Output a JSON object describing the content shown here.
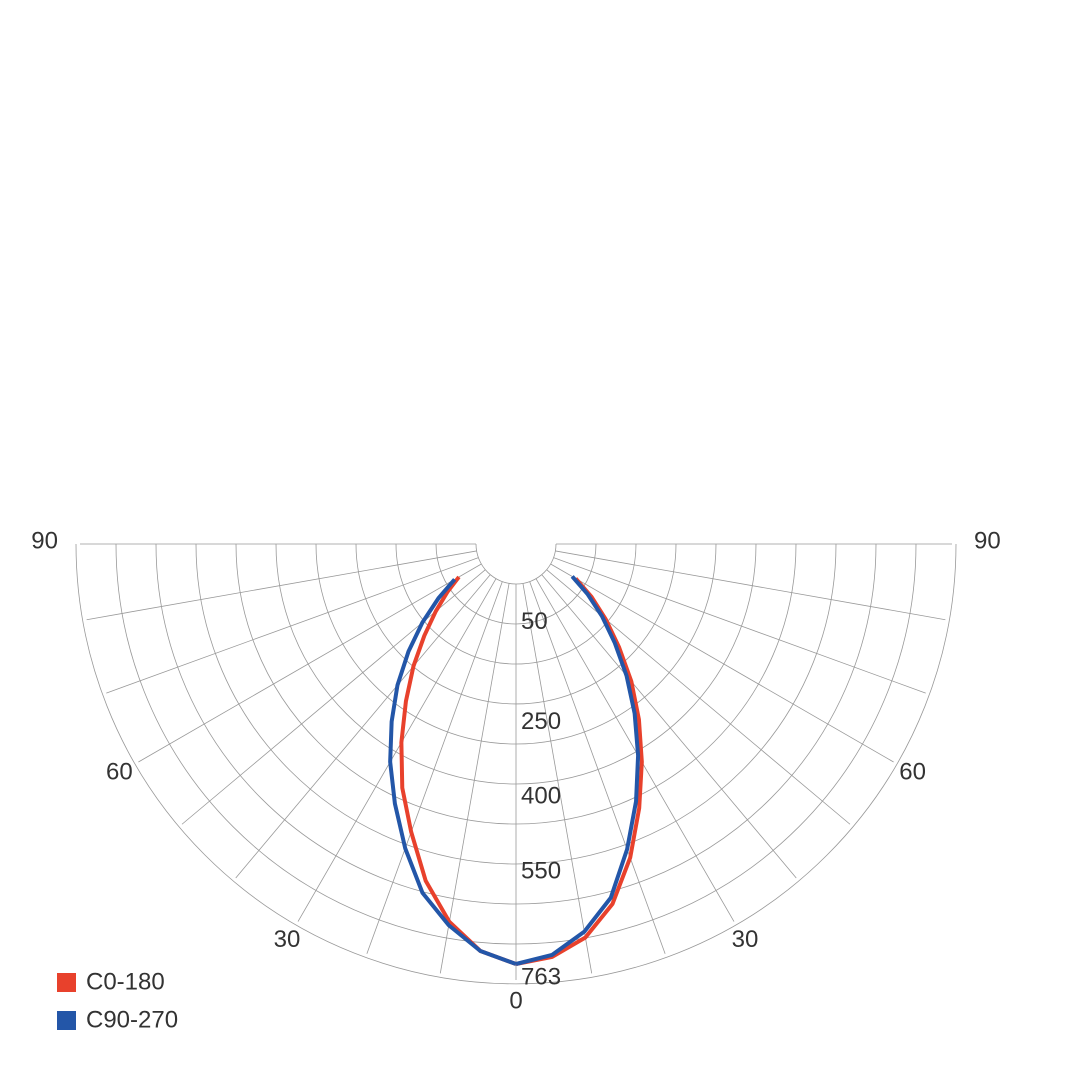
{
  "chart_data": {
    "type": "polar",
    "theta": [
      0,
      5,
      10,
      15,
      20,
      25,
      30,
      35,
      40,
      45,
      50,
      55,
      60
    ],
    "series": [
      {
        "name": "C0-180",
        "color": "#e8412c",
        "right": [
          763,
          752,
          722,
          668,
          590,
          505,
          425,
          350,
          280,
          212,
          155,
          105,
          58
        ],
        "left": [
          763,
          740,
          690,
          620,
          535,
          460,
          380,
          305,
          240,
          180,
          130,
          88,
          52
        ]
      },
      {
        "name": "C90-270",
        "color": "#2356a8",
        "right": [
          763,
          748,
          710,
          655,
          572,
          490,
          410,
          335,
          265,
          200,
          145,
          95,
          50
        ],
        "left": [
          763,
          740,
          697,
          645,
          570,
          495,
          425,
          355,
          290,
          225,
          165,
          110,
          62
        ]
      }
    ],
    "rlim": [
      0,
      763
    ],
    "rticks": [
      50,
      250,
      400,
      550,
      763
    ],
    "thetaticks": [
      0,
      30,
      60,
      90
    ]
  }
}
